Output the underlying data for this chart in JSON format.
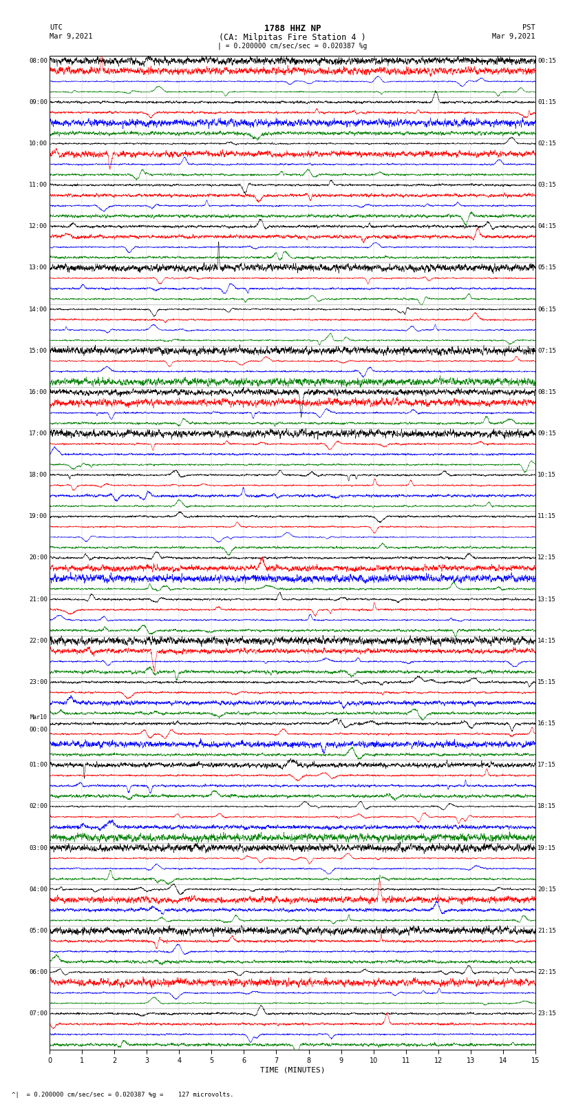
{
  "title_line1": "1788 HHZ NP",
  "title_line2": "(CA: Milpitas Fire Station 4 )",
  "scale_text": "= 0.200000 cm/sec/sec = 0.020387 %g",
  "bottom_note": "^|  = 0.200000 cm/sec/sec = 0.020387 %g =    127 microvolts.",
  "xlabel": "TIME (MINUTES)",
  "time_minutes": 15,
  "colors": [
    "black",
    "red",
    "blue",
    "green"
  ],
  "left_times_utc": [
    "08:00",
    "",
    "",
    "",
    "09:00",
    "",
    "",
    "",
    "10:00",
    "",
    "",
    "",
    "11:00",
    "",
    "",
    "",
    "12:00",
    "",
    "",
    "",
    "13:00",
    "",
    "",
    "",
    "14:00",
    "",
    "",
    "",
    "15:00",
    "",
    "",
    "",
    "16:00",
    "",
    "",
    "",
    "17:00",
    "",
    "",
    "",
    "18:00",
    "",
    "",
    "",
    "19:00",
    "",
    "",
    "",
    "20:00",
    "",
    "",
    "",
    "21:00",
    "",
    "",
    "",
    "22:00",
    "",
    "",
    "",
    "23:00",
    "",
    "",
    "",
    "Mar10\n00:00",
    "",
    "",
    "",
    "01:00",
    "",
    "",
    "",
    "02:00",
    "",
    "",
    "",
    "03:00",
    "",
    "",
    "",
    "04:00",
    "",
    "",
    "",
    "05:00",
    "",
    "",
    "",
    "06:00",
    "",
    "",
    "",
    "07:00",
    "",
    "",
    ""
  ],
  "right_times_pst": [
    "00:15",
    "",
    "",
    "",
    "01:15",
    "",
    "",
    "",
    "02:15",
    "",
    "",
    "",
    "03:15",
    "",
    "",
    "",
    "04:15",
    "",
    "",
    "",
    "05:15",
    "",
    "",
    "",
    "06:15",
    "",
    "",
    "",
    "07:15",
    "",
    "",
    "",
    "08:15",
    "",
    "",
    "",
    "09:15",
    "",
    "",
    "",
    "10:15",
    "",
    "",
    "",
    "11:15",
    "",
    "",
    "",
    "12:15",
    "",
    "",
    "",
    "13:15",
    "",
    "",
    "",
    "14:15",
    "",
    "",
    "",
    "15:15",
    "",
    "",
    "",
    "16:15",
    "",
    "",
    "",
    "17:15",
    "",
    "",
    "",
    "18:15",
    "",
    "",
    "",
    "19:15",
    "",
    "",
    "",
    "20:15",
    "",
    "",
    "",
    "21:15",
    "",
    "",
    "",
    "22:15",
    "",
    "",
    "",
    "23:15",
    "",
    "",
    ""
  ],
  "background_color": "#ffffff",
  "num_points": 3000,
  "figsize": [
    8.5,
    16.13
  ],
  "dpi": 100
}
